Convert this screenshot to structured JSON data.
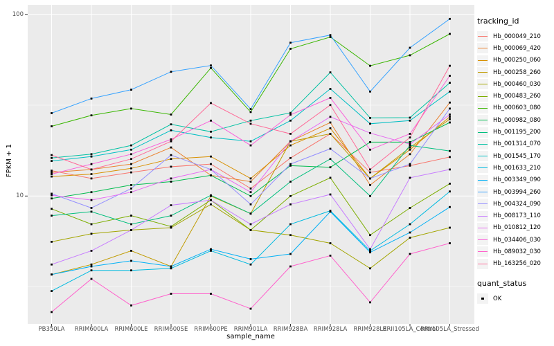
{
  "figure": {
    "y_axis": {
      "title": "FPKM + 1",
      "tick_100": "100",
      "tick_10": "10"
    },
    "x_axis": {
      "title": "sample_name"
    },
    "legend": {
      "tracking_title": "tracking_id",
      "quant_title": "quant_status",
      "quant_ok_label": "OK"
    }
  },
  "chart_data": {
    "type": "line",
    "title": "",
    "xlabel": "sample_name",
    "ylabel": "FPKM + 1",
    "y_scale": "log10",
    "ylim": [
      2,
      114
    ],
    "y_major_ticks": [
      100,
      10
    ],
    "y_minor_gridlines": [
      31.62,
      3.162
    ],
    "grid": "on",
    "legend_position": "right",
    "point_shape": "filled-black-square",
    "panel_background": "#EBEBEB",
    "gridline_color": "#FFFFFF",
    "categories": [
      "PB350LA",
      "RRIM600LA",
      "RRIM600LE",
      "RRIM600SE",
      "RRIM600PE",
      "RRIM901LA",
      "RRIM928BA",
      "RRIM928LA",
      "RRIM928LE",
      "RRII105LA_Control",
      "RRII105LA_Stressed"
    ],
    "quant_status": {
      "title": "quant_status",
      "items": [
        "OK"
      ]
    },
    "series": [
      {
        "name": "Hb_000049_210",
        "color": "#F8766D",
        "values": [
          13.8,
          12.5,
          13.5,
          14.5,
          15.0,
          11.0,
          16.2,
          22.0,
          13.5,
          14.7,
          16.4
        ]
      },
      {
        "name": "Hb_000069_420",
        "color": "#EA8331",
        "values": [
          13.5,
          14.0,
          15.0,
          18.5,
          13.0,
          12.0,
          20.0,
          25.4,
          11.5,
          17.0,
          32.7
        ]
      },
      {
        "name": "Hb_000250_060",
        "color": "#D89000",
        "values": [
          12.8,
          13.2,
          14.2,
          16.0,
          16.5,
          12.5,
          19.0,
          23.6,
          12.5,
          18.0,
          27.3
        ]
      },
      {
        "name": "Hb_000258_260",
        "color": "#C09B00",
        "values": [
          3.7,
          4.2,
          5.0,
          4.1,
          10.0,
          8.0,
          20.0,
          22.0,
          12.5,
          18.5,
          26.5
        ]
      },
      {
        "name": "Hb_000460_030",
        "color": "#A3A500",
        "values": [
          5.6,
          6.2,
          6.5,
          6.7,
          9.0,
          6.5,
          6.1,
          5.5,
          4.0,
          5.9,
          6.7
        ]
      },
      {
        "name": "Hb_000483_260",
        "color": "#7CAE00",
        "values": [
          8.5,
          7.0,
          7.8,
          6.8,
          9.5,
          6.5,
          10.0,
          12.6,
          6.1,
          8.6,
          11.7
        ]
      },
      {
        "name": "Hb_000603_080",
        "color": "#39B600",
        "values": [
          24.2,
          27.8,
          30.3,
          28.1,
          50.7,
          29.0,
          64.6,
          75.0,
          52.1,
          59.5,
          78.0
        ]
      },
      {
        "name": "Hb_000982_080",
        "color": "#00BB4E",
        "values": [
          9.7,
          10.5,
          11.5,
          12.0,
          13.0,
          10.0,
          14.7,
          14.4,
          19.8,
          19.8,
          25.4
        ]
      },
      {
        "name": "Hb_001195_200",
        "color": "#00BF7D",
        "values": [
          7.8,
          8.2,
          7.0,
          7.8,
          10.1,
          8.0,
          12.0,
          16.0,
          10.0,
          19.0,
          17.7
        ]
      },
      {
        "name": "Hb_001314_070",
        "color": "#00C1A3",
        "values": [
          16.2,
          17.0,
          19.0,
          24.8,
          22.6,
          26.0,
          28.7,
          47.9,
          26.9,
          27.0,
          42.0
        ]
      },
      {
        "name": "Hb_001545_170",
        "color": "#00BFC4",
        "values": [
          15.6,
          16.5,
          18.0,
          23.0,
          21.0,
          20.0,
          26.0,
          38.9,
          25.0,
          26.0,
          37.6
        ]
      },
      {
        "name": "Hb_001633_210",
        "color": "#00BAE0",
        "values": [
          3.0,
          3.9,
          3.9,
          4.0,
          5.0,
          4.2,
          7.0,
          8.3,
          5.0,
          7.0,
          10.6
        ]
      },
      {
        "name": "Hb_003349_090",
        "color": "#00B0F6",
        "values": [
          3.7,
          4.1,
          4.4,
          4.1,
          5.1,
          4.5,
          4.8,
          8.2,
          4.9,
          6.3,
          8.7
        ]
      },
      {
        "name": "Hb_003994_260",
        "color": "#35A2FF",
        "values": [
          28.6,
          34.4,
          38.5,
          48.3,
          52.3,
          30.1,
          69.8,
          76.9,
          37.6,
          65.5,
          94.4
        ]
      },
      {
        "name": "Hb_004324_090",
        "color": "#9590FF",
        "values": [
          10.3,
          8.6,
          11.0,
          16.8,
          14.0,
          9.0,
          15.0,
          18.2,
          12.5,
          15.0,
          30.3
        ]
      },
      {
        "name": "Hb_008173_110",
        "color": "#C77CFF",
        "values": [
          4.2,
          5.0,
          6.5,
          8.9,
          9.5,
          7.0,
          9.0,
          10.2,
          5.1,
          12.6,
          14.0
        ]
      },
      {
        "name": "Hb_010812_120",
        "color": "#E76BF3",
        "values": [
          10.1,
          9.5,
          10.5,
          12.5,
          14.0,
          10.5,
          20.0,
          27.3,
          22.2,
          19.3,
          28.1
        ]
      },
      {
        "name": "Hb_034406_030",
        "color": "#FA62DB",
        "values": [
          13.2,
          15.0,
          17.0,
          20.5,
          26.0,
          19.0,
          28.0,
          34.7,
          18.0,
          22.0,
          45.9
        ]
      },
      {
        "name": "Hb_089032_030",
        "color": "#FF61CC",
        "values": [
          2.3,
          3.5,
          2.5,
          2.9,
          2.9,
          2.4,
          4.1,
          4.7,
          2.6,
          4.8,
          5.5
        ]
      },
      {
        "name": "Hb_163256_020",
        "color": "#FF6A98",
        "values": [
          16.8,
          14.0,
          16.0,
          20.0,
          32.5,
          25.0,
          22.0,
          31.7,
          14.0,
          21.0,
          52.1
        ]
      }
    ]
  }
}
